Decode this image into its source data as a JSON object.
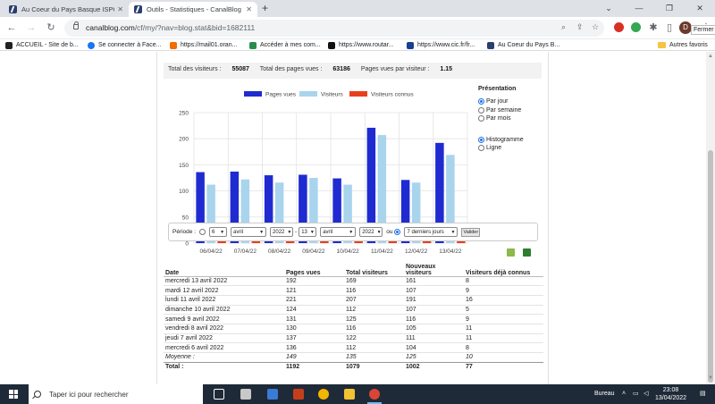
{
  "browser": {
    "tabs": [
      {
        "title": "Au Coeur du Pays Basque ISPOUR",
        "active": false
      },
      {
        "title": "Outils - Statistiques - CanalBlog",
        "active": true
      }
    ],
    "url_host": "canalblog.com",
    "url_path": "/cf/my/?nav=blog.stat&bid=1682111",
    "profile_initial": "D",
    "close_tooltip": "Fermer",
    "bookmarks": [
      {
        "label": "ACCUEIL - Site de b...",
        "color": "#222222"
      },
      {
        "label": "Se connecter à Face...",
        "color": "#1877f2"
      },
      {
        "label": "https://mail01.oran...",
        "color": "#f16e00"
      },
      {
        "label": "Accéder à mes com...",
        "color": "#2a8c4a"
      },
      {
        "label": "https://www.routar...",
        "color": "#111111"
      },
      {
        "label": "https://www.cic.fr/fr...",
        "color": "#1b3f8f"
      },
      {
        "label": "Au Coeur du Pays B...",
        "color": "#2a3f6f"
      }
    ],
    "other_bookmarks": "Autres favoris"
  },
  "summary": {
    "visitors_label": "Total des visiteurs :",
    "visitors_value": "55087",
    "pages_label": "Total des pages vues :",
    "pages_value": "63186",
    "ppv_label": "Pages vues par visiteur :",
    "ppv_value": "1.15"
  },
  "chart_data": {
    "type": "bar",
    "categories": [
      "06/04/22",
      "07/04/22",
      "08/04/22",
      "09/04/22",
      "10/04/22",
      "11/04/22",
      "12/04/22",
      "13/04/22"
    ],
    "series": [
      {
        "name": "Pages vues",
        "color": "#1f2bd1",
        "values": [
          136,
          137,
          130,
          131,
          124,
          221,
          121,
          192
        ]
      },
      {
        "name": "Visiteurs",
        "color": "#a9d4ee",
        "values": [
          112,
          122,
          116,
          125,
          112,
          207,
          116,
          169
        ]
      },
      {
        "name": "Visiteurs connus",
        "color": "#e8401c",
        "values": [
          8,
          11,
          11,
          9,
          5,
          16,
          9,
          8
        ]
      }
    ],
    "ylim": [
      0,
      250
    ],
    "yticks": [
      0,
      50,
      100,
      150,
      200,
      250
    ],
    "grid": true,
    "legend_position": "top"
  },
  "presentation": {
    "title": "Présentation",
    "period_options": [
      {
        "label": "Par jour",
        "checked": true
      },
      {
        "label": "Par semaine",
        "checked": false
      },
      {
        "label": "Par mois",
        "checked": false
      }
    ],
    "type_options": [
      {
        "label": "Histogramme",
        "checked": true
      },
      {
        "label": "Ligne",
        "checked": false
      }
    ]
  },
  "period": {
    "label": "Période :",
    "from_day": "6",
    "from_month": "avril",
    "from_year": "2022",
    "dash": "-",
    "to_day": "13",
    "to_month": "avril",
    "to_year": "2022",
    "or_label": "ou",
    "preset": "7 derniers jours",
    "submit": "Valider"
  },
  "table": {
    "headers": [
      "Date",
      "Pages vues",
      "Total visiteurs",
      "Nouveaux visiteurs",
      "Visiteurs déjà connus"
    ],
    "rows": [
      [
        "mercredi 13 avril 2022",
        "192",
        "169",
        "161",
        "8"
      ],
      [
        "mardi 12 avril 2022",
        "121",
        "116",
        "107",
        "9"
      ],
      [
        "lundi 11 avril 2022",
        "221",
        "207",
        "191",
        "16"
      ],
      [
        "dimanche 10 avril 2022",
        "124",
        "112",
        "107",
        "5"
      ],
      [
        "samedi 9 avril 2022",
        "131",
        "125",
        "116",
        "9"
      ],
      [
        "vendredi 8 avril 2022",
        "130",
        "116",
        "105",
        "11"
      ],
      [
        "jeudi 7 avril 2022",
        "137",
        "122",
        "111",
        "11"
      ],
      [
        "mercredi 6 avril 2022",
        "136",
        "112",
        "104",
        "8"
      ]
    ],
    "average": [
      "Moyenne :",
      "149",
      "135",
      "125",
      "10"
    ],
    "total": [
      "Total :",
      "1192",
      "1079",
      "1002",
      "77"
    ]
  },
  "taskbar": {
    "search_placeholder": "Taper ici pour rechercher",
    "desktop_label": "Bureau",
    "time": "23:08",
    "date": "13/04/2022"
  }
}
